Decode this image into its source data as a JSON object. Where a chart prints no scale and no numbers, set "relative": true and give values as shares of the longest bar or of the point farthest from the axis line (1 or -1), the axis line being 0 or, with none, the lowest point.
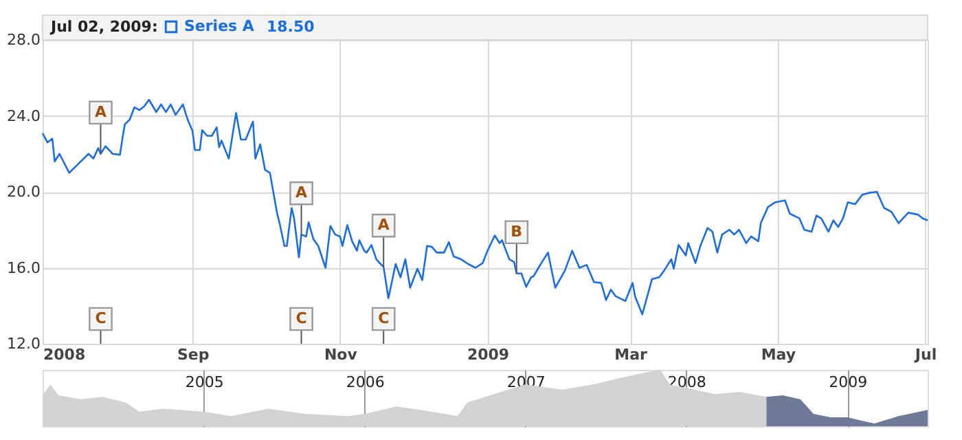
{
  "chart_data": [
    {
      "type": "line",
      "title": "Jul 02, 2009:",
      "legend": "top left",
      "grid": true,
      "annotations": [
        "18.50",
        {
          "text": "A",
          "x": "2008-07-25",
          "y": 22.0
        },
        {
          "text": "A",
          "x": "2008-10-16",
          "y": 17.75
        },
        {
          "text": "A",
          "x": "2008-11-19",
          "y": 16.05
        },
        {
          "text": "B",
          "x": "2009-01-13",
          "y": 15.7
        },
        {
          "text": "C",
          "x": "2008-07-25"
        },
        {
          "text": "C",
          "x": "2008-10-16"
        },
        {
          "text": "C",
          "x": "2008-11-19"
        }
      ],
      "xlim": [
        "2008-07-01",
        "2009-07-02"
      ],
      "xticks": [
        {
          "value": "2008-07-01",
          "label": "2008"
        },
        {
          "value": "2008-09-01",
          "label": "Sep"
        },
        {
          "value": "2008-11-01",
          "label": "Nov"
        },
        {
          "value": "2009-01-01",
          "label": "2009"
        },
        {
          "value": "2009-03-01",
          "label": "Mar"
        },
        {
          "value": "2009-05-01",
          "label": "May"
        },
        {
          "value": "2009-07-01",
          "label": "Jul"
        }
      ],
      "ylim": [
        12,
        28
      ],
      "yticks": [
        {
          "value": 12,
          "label": "12.0"
        },
        {
          "value": 16,
          "label": "16.0"
        },
        {
          "value": 20,
          "label": "20.0"
        },
        {
          "value": 24,
          "label": "24.0"
        },
        {
          "value": 28,
          "label": "28.0"
        }
      ],
      "x": [
        "2008-07-01",
        "2008-07-03",
        "2008-07-05",
        "2008-07-06",
        "2008-07-08",
        "2008-07-12",
        "2008-07-16",
        "2008-07-20",
        "2008-07-22",
        "2008-07-24",
        "2008-07-25",
        "2008-07-27",
        "2008-07-30",
        "2008-08-02",
        "2008-08-03",
        "2008-08-04",
        "2008-08-06",
        "2008-08-08",
        "2008-08-10",
        "2008-08-12",
        "2008-08-14",
        "2008-08-17",
        "2008-08-19",
        "2008-08-21",
        "2008-08-23",
        "2008-08-25",
        "2008-08-28",
        "2008-08-30",
        "2008-09-01",
        "2008-09-02",
        "2008-09-04",
        "2008-09-05",
        "2008-09-07",
        "2008-09-09",
        "2008-09-11",
        "2008-09-12",
        "2008-09-13",
        "2008-09-16",
        "2008-09-19",
        "2008-09-21",
        "2008-09-23",
        "2008-09-26",
        "2008-09-27",
        "2008-09-29",
        "2008-10-01",
        "2008-10-03",
        "2008-10-06",
        "2008-10-07",
        "2008-10-09",
        "2008-10-10",
        "2008-10-12",
        "2008-10-13",
        "2008-10-15",
        "2008-10-16",
        "2008-10-18",
        "2008-10-19",
        "2008-10-21",
        "2008-10-23",
        "2008-10-26",
        "2008-10-28",
        "2008-10-30",
        "2008-11-01",
        "2008-11-02",
        "2008-11-04",
        "2008-11-06",
        "2008-11-08",
        "2008-11-09",
        "2008-11-11",
        "2008-11-12",
        "2008-11-14",
        "2008-11-16",
        "2008-11-17",
        "2008-11-19",
        "2008-11-21",
        "2008-11-24",
        "2008-11-26",
        "2008-11-28",
        "2008-11-30",
        "2008-12-03",
        "2008-12-05",
        "2008-12-07",
        "2008-12-09",
        "2008-12-11",
        "2008-12-14",
        "2008-12-16",
        "2008-12-18",
        "2008-12-21",
        "2008-12-24",
        "2008-12-27",
        "2008-12-30",
        "2009-01-01",
        "2009-01-04",
        "2009-01-06",
        "2009-01-07",
        "2009-01-10",
        "2009-01-12",
        "2009-01-13",
        "2009-01-15",
        "2009-01-17",
        "2009-01-19",
        "2009-01-20",
        "2009-01-23",
        "2009-01-26",
        "2009-01-29",
        "2009-02-02",
        "2009-02-05",
        "2009-02-08",
        "2009-02-11",
        "2009-02-14",
        "2009-02-17",
        "2009-02-19",
        "2009-02-21",
        "2009-02-23",
        "2009-02-27",
        "2009-03-02",
        "2009-03-03",
        "2009-03-06",
        "2009-03-10",
        "2009-03-13",
        "2009-03-15",
        "2009-03-18",
        "2009-03-19",
        "2009-03-21",
        "2009-03-24",
        "2009-03-25",
        "2009-03-28",
        "2009-03-30",
        "2009-04-02",
        "2009-04-04",
        "2009-04-06",
        "2009-04-08",
        "2009-04-11",
        "2009-04-13",
        "2009-04-15",
        "2009-04-18",
        "2009-04-20",
        "2009-04-23",
        "2009-04-24",
        "2009-04-27",
        "2009-04-30",
        "2009-05-04",
        "2009-05-06",
        "2009-05-10",
        "2009-05-12",
        "2009-05-15",
        "2009-05-17",
        "2009-05-19",
        "2009-05-22",
        "2009-05-24",
        "2009-05-26",
        "2009-05-28",
        "2009-05-30",
        "2009-06-02",
        "2009-06-05",
        "2009-06-08",
        "2009-06-11",
        "2009-06-14",
        "2009-06-17",
        "2009-06-20",
        "2009-06-24",
        "2009-06-28",
        "2009-06-30",
        "2009-07-02"
      ],
      "series": [
        {
          "name": "Series A",
          "color": "#1a6ee0",
          "values": [
            23.08,
            22.6,
            22.8,
            21.6,
            22.0,
            21.0,
            21.5,
            22.0,
            21.75,
            22.3,
            22.0,
            22.4,
            22.0,
            21.95,
            22.8,
            23.55,
            23.8,
            24.45,
            24.3,
            24.5,
            24.85,
            24.2,
            24.6,
            24.2,
            24.6,
            24.05,
            24.6,
            23.8,
            23.2,
            22.2,
            22.2,
            23.25,
            22.95,
            22.95,
            23.4,
            22.35,
            22.7,
            21.75,
            24.15,
            22.75,
            22.75,
            23.7,
            21.75,
            22.5,
            21.15,
            21.0,
            18.85,
            18.35,
            17.15,
            17.15,
            19.15,
            18.6,
            16.55,
            17.75,
            17.65,
            18.4,
            17.5,
            17.15,
            16.0,
            18.2,
            17.75,
            17.65,
            17.15,
            18.25,
            17.4,
            16.9,
            17.45,
            16.9,
            16.8,
            17.2,
            16.45,
            16.3,
            16.05,
            14.4,
            16.2,
            15.5,
            16.45,
            14.95,
            15.95,
            15.35,
            17.15,
            17.1,
            16.8,
            16.8,
            17.35,
            16.6,
            16.45,
            16.2,
            16.0,
            16.25,
            16.9,
            17.7,
            17.3,
            17.45,
            16.45,
            16.3,
            15.7,
            15.7,
            15.0,
            15.5,
            15.55,
            16.2,
            16.8,
            14.95,
            15.85,
            16.9,
            16.0,
            16.15,
            15.25,
            15.2,
            14.3,
            14.85,
            14.5,
            14.25,
            15.2,
            14.5,
            13.55,
            15.4,
            15.5,
            15.85,
            16.45,
            15.95,
            17.2,
            16.65,
            17.3,
            16.25,
            17.15,
            18.1,
            17.9,
            16.8,
            17.75,
            18.0,
            17.75,
            18.0,
            17.3,
            17.65,
            17.4,
            18.35,
            19.2,
            19.45,
            19.55,
            18.85,
            18.6,
            18.0,
            17.9,
            18.75,
            18.6,
            17.9,
            18.5,
            18.15,
            18.6,
            19.45,
            19.35,
            19.85,
            19.95,
            20.0,
            19.15,
            18.95,
            18.35,
            18.9,
            18.8,
            18.6,
            18.5
          ]
        }
      ]
    },
    {
      "type": "area",
      "relative": true,
      "grid": "x",
      "xlim": [
        "2004-01-01",
        "2009-07-02"
      ],
      "xticks": [
        {
          "value": "2005-01-01",
          "label": "2005"
        },
        {
          "value": "2006-01-01",
          "label": "2006"
        },
        {
          "value": "2007-01-01",
          "label": "2007"
        },
        {
          "value": "2008-01-01",
          "label": "2008"
        },
        {
          "value": "2009-01-01",
          "label": "2009"
        }
      ],
      "series": [
        {
          "color": "#d2d2d2",
          "x": [
            "2004-01-01",
            "2004-01-19",
            "2004-02-06",
            "2004-03-28",
            "2004-05-15",
            "2004-07-08",
            "2004-08-07",
            "2004-10-01",
            "2005-01-01",
            "2005-03-04",
            "2005-05-27",
            "2005-08-19",
            "2005-11-24",
            "2006-01-01",
            "2006-03-14",
            "2006-05-08",
            "2006-07-02",
            "2006-07-31",
            "2006-08-22",
            "2006-11-07",
            "2007-01-01",
            "2007-03-26",
            "2007-06-03",
            "2007-08-11",
            "2007-10-05",
            "2007-11-03",
            "2007-11-25",
            "2008-01-01",
            "2008-03-07",
            "2008-05-01",
            "2008-07-01"
          ],
          "values": [
            0.55,
            0.74,
            0.55,
            0.48,
            0.52,
            0.42,
            0.26,
            0.31,
            0.26,
            0.18,
            0.31,
            0.22,
            0.18,
            0.22,
            0.35,
            0.29,
            0.22,
            0.18,
            0.42,
            0.61,
            0.74,
            0.65,
            0.74,
            0.87,
            0.96,
            1.0,
            0.74,
            0.68,
            0.57,
            0.61,
            0.52
          ]
        },
        {
          "color": "#6e7a98",
          "x": [
            "2008-07-01",
            "2008-08-07",
            "2008-09-16",
            "2008-10-16",
            "2008-11-24",
            "2009-01-01",
            "2009-02-06",
            "2009-03-03",
            "2009-04-27",
            "2009-07-02"
          ],
          "values": [
            0.52,
            0.55,
            0.48,
            0.22,
            0.16,
            0.16,
            0.09,
            0.05,
            0.18,
            0.29
          ]
        }
      ]
    }
  ]
}
